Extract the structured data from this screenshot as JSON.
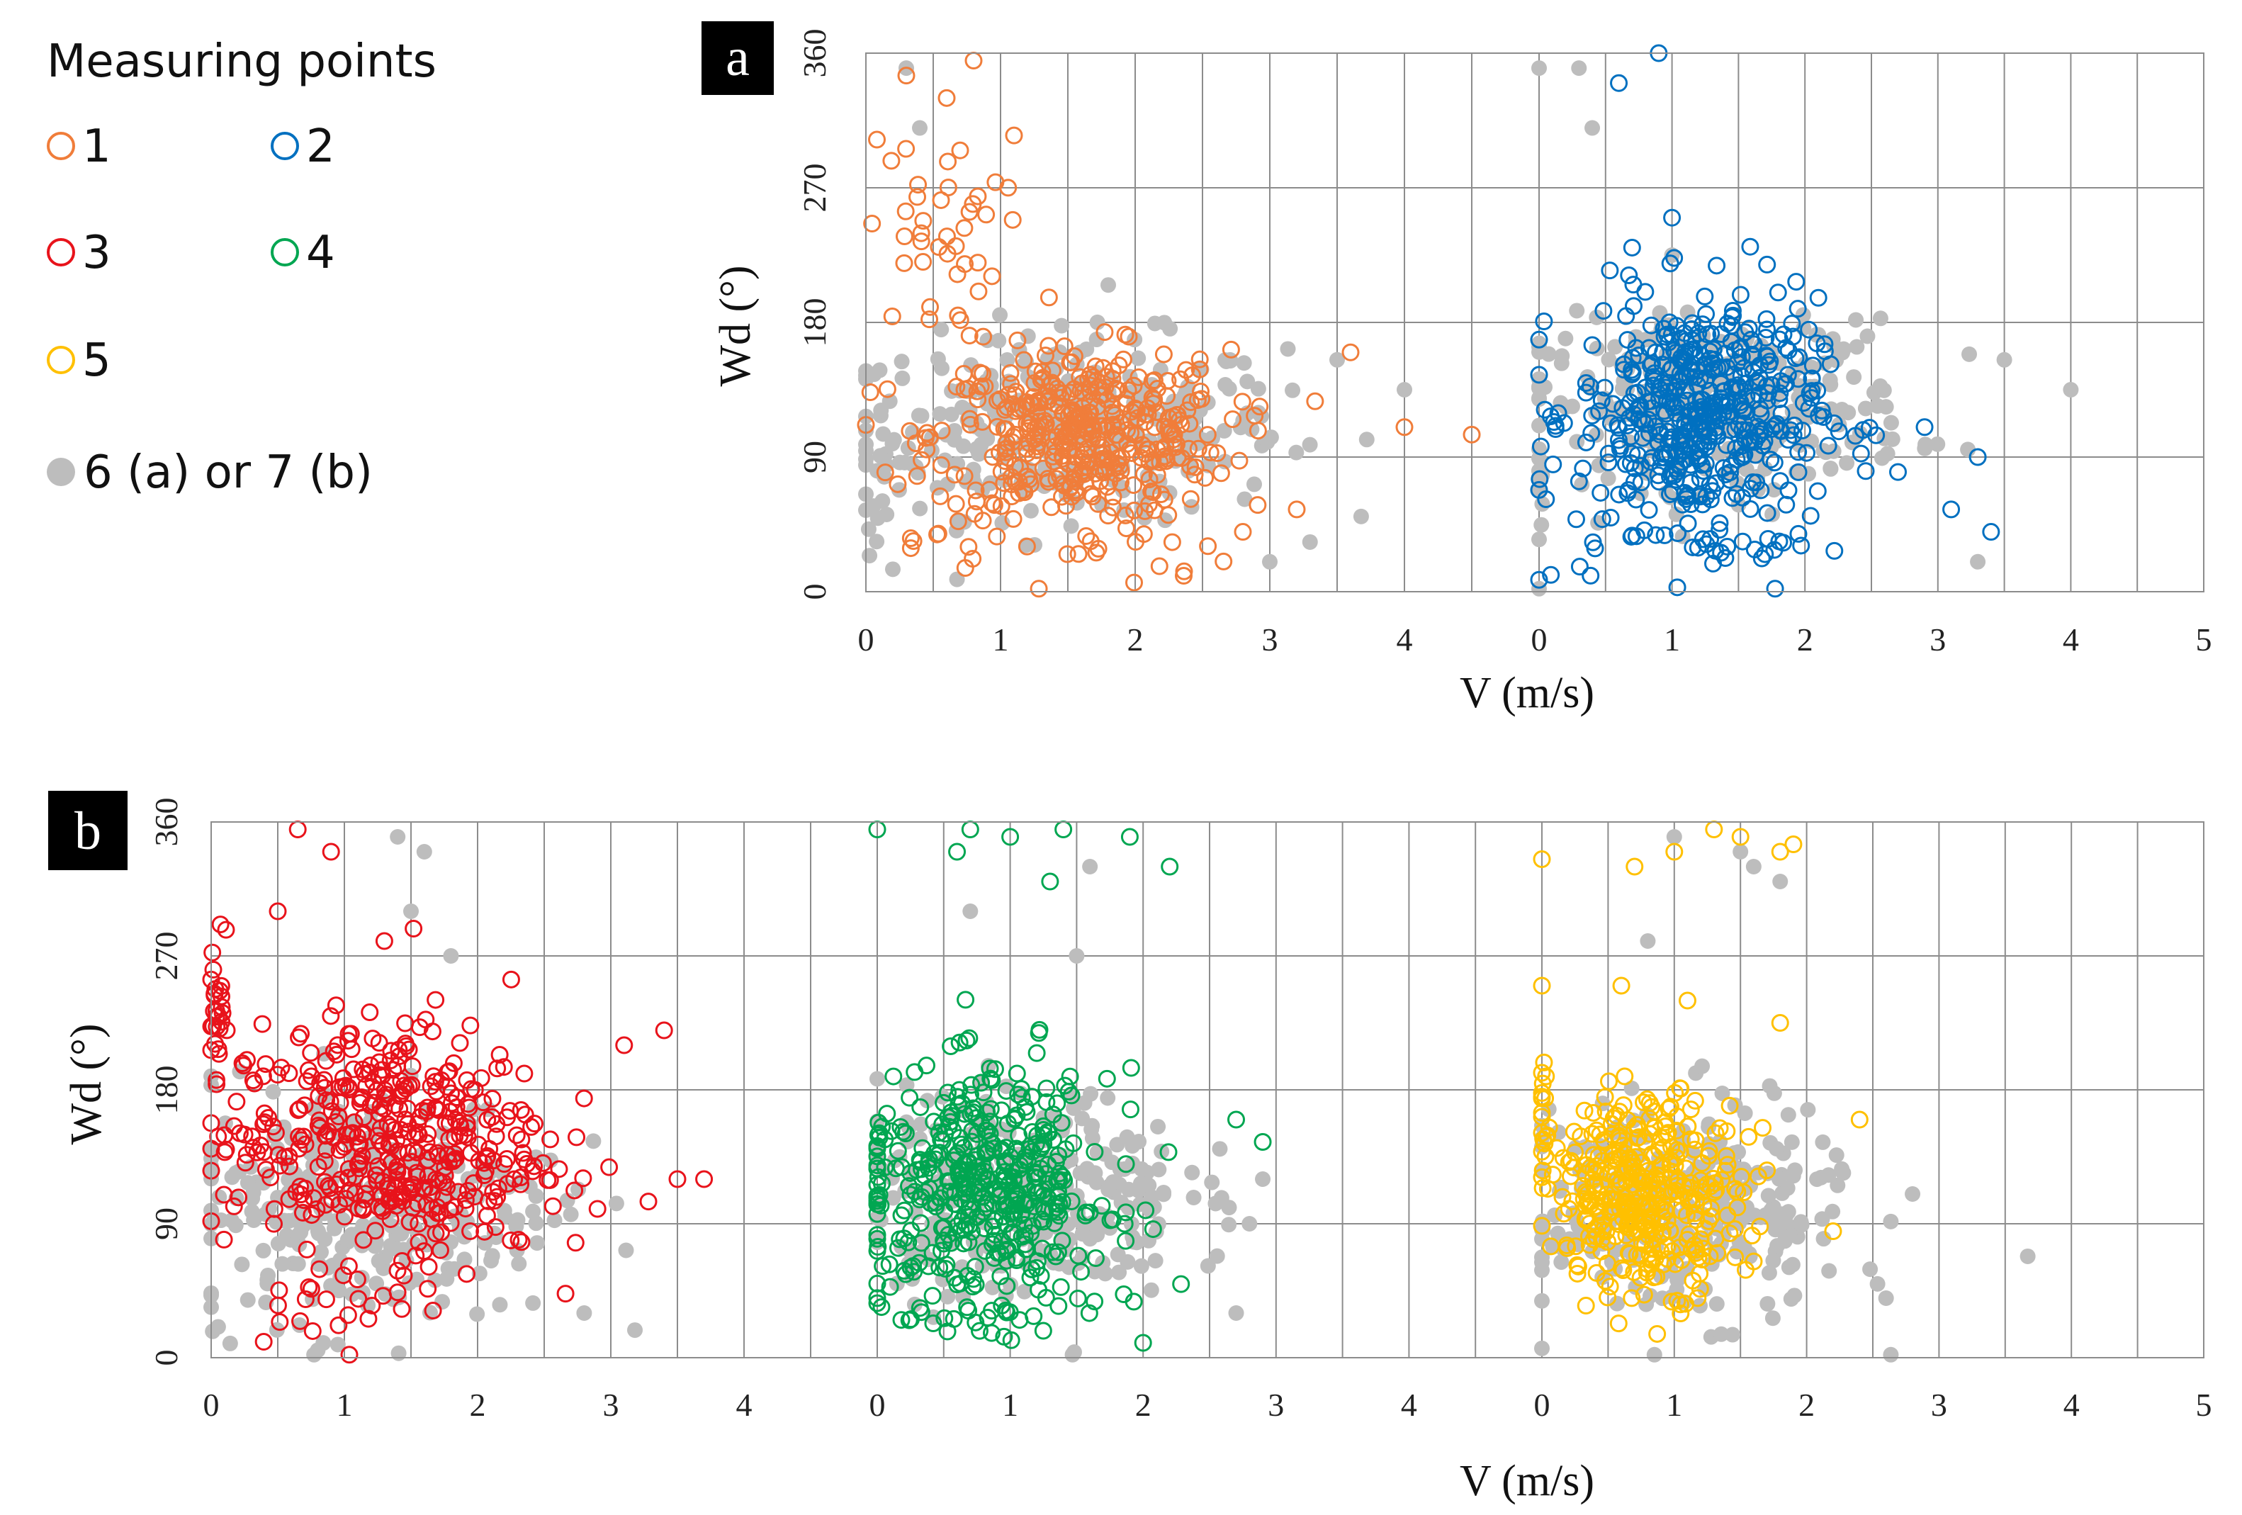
{
  "legend": {
    "title": "Measuring points",
    "items": [
      {
        "label": "1",
        "color": "#f07d3a",
        "marker": "open-circle"
      },
      {
        "label": "2",
        "color": "#0070c0",
        "marker": "open-circle"
      },
      {
        "label": "3",
        "color": "#e8131b",
        "marker": "open-circle"
      },
      {
        "label": "4",
        "color": "#00a651",
        "marker": "open-circle"
      },
      {
        "label": "5",
        "color": "#ffc000",
        "marker": "open-circle"
      },
      {
        "label": "6 (a) or 7 (b)",
        "color": "#bdbdbd",
        "marker": "filled-circle"
      }
    ]
  },
  "chart_data": [
    {
      "type": "scatter",
      "panel_label": "a",
      "ylabel": "Wd (°)",
      "xlabel": "V (m/s)",
      "ylim": [
        0,
        360
      ],
      "yticks": [
        "0",
        "90",
        "180",
        "270",
        "360"
      ],
      "grid": true,
      "subplots": [
        {
          "xlim": [
            0,
            5
          ],
          "xticks": [
            "0",
            "1",
            "2",
            "3",
            "4"
          ],
          "series": [
            {
              "name": "1",
              "color": "#f07d3a",
              "marker": "open-circle",
              "clusters": [
                {
                  "cx": 1.6,
                  "cy": 105,
                  "sx": 0.55,
                  "sy": 28,
                  "n": 420
                },
                {
                  "cx": 0.5,
                  "cy": 235,
                  "sx": 0.25,
                  "sy": 35,
                  "n": 40
                },
                {
                  "cx": 1.5,
                  "cy": 30,
                  "sx": 0.6,
                  "sy": 15,
                  "n": 25
                }
              ],
              "points": [
                [
                  0.3,
                  345
                ],
                [
                  0.6,
                  330
                ],
                [
                  0.8,
                  355
                ],
                [
                  1.1,
                  305
                ],
                [
                  3.6,
                  160
                ],
                [
                  4.5,
                  105
                ],
                [
                  4.0,
                  110
                ],
                [
                  3.2,
                  55
                ],
                [
                  2.8,
                  40
                ],
                [
                  0.7,
                  295
                ]
              ]
            },
            {
              "name": "6 (a) or 7 (b)",
              "color": "#bdbdbd",
              "marker": "filled-circle",
              "clusters": [
                {
                  "cx": 1.5,
                  "cy": 110,
                  "sx": 0.8,
                  "sy": 30,
                  "n": 330
                },
                {
                  "cx": 0.1,
                  "cy": 60,
                  "sx": 0.05,
                  "sy": 30,
                  "n": 12
                }
              ],
              "points": [
                [
                  0.3,
                  350
                ],
                [
                  0.4,
                  310
                ],
                [
                  1.8,
                  205
                ],
                [
                  3.5,
                  155
                ],
                [
                  4.0,
                  135
                ],
                [
                  3.0,
                  20
                ],
                [
                  0.2,
                  15
                ]
              ]
            }
          ]
        },
        {
          "xlim": [
            0,
            5
          ],
          "xticks": [
            "0",
            "1",
            "2",
            "3",
            "4",
            "5"
          ],
          "series": [
            {
              "name": "2",
              "color": "#0070c0",
              "marker": "open-circle",
              "clusters": [
                {
                  "cx": 1.2,
                  "cy": 120,
                  "sx": 0.45,
                  "sy": 38,
                  "n": 480
                },
                {
                  "cx": 1.1,
                  "cy": 35,
                  "sx": 0.5,
                  "sy": 18,
                  "n": 35
                }
              ],
              "points": [
                [
                  0.6,
                  340
                ],
                [
                  0.9,
                  360
                ],
                [
                  1.0,
                  250
                ],
                [
                  0.7,
                  230
                ],
                [
                  3.3,
                  90
                ],
                [
                  3.4,
                  40
                ],
                [
                  3.1,
                  55
                ],
                [
                  2.7,
                  80
                ],
                [
                  0.0,
                  145
                ],
                [
                  2.9,
                  110
                ]
              ]
            },
            {
              "name": "6 (a) or 7 (b)",
              "color": "#bdbdbd",
              "marker": "filled-circle",
              "clusters": [
                {
                  "cx": 1.4,
                  "cy": 125,
                  "sx": 0.7,
                  "sy": 28,
                  "n": 300
                },
                {
                  "cx": 0.0,
                  "cy": 70,
                  "sx": 0.03,
                  "sy": 30,
                  "n": 10
                }
              ],
              "points": [
                [
                  0.0,
                  350
                ],
                [
                  0.3,
                  350
                ],
                [
                  0.4,
                  310
                ],
                [
                  1.0,
                  225
                ],
                [
                  3.5,
                  155
                ],
                [
                  4.0,
                  135
                ],
                [
                  3.3,
                  20
                ]
              ]
            }
          ]
        }
      ]
    },
    {
      "type": "scatter",
      "panel_label": "b",
      "ylabel": "Wd (°)",
      "xlabel": "V (m/s)",
      "ylim": [
        0,
        360
      ],
      "yticks": [
        "0",
        "90",
        "180",
        "270",
        "360"
      ],
      "grid": true,
      "subplots": [
        {
          "xlim": [
            0,
            5
          ],
          "xticks": [
            "0",
            "1",
            "2",
            "3",
            "4"
          ],
          "series": [
            {
              "name": "3",
              "color": "#e8131b",
              "marker": "open-circle",
              "clusters": [
                {
                  "cx": 1.3,
                  "cy": 145,
                  "sx": 0.6,
                  "sy": 40,
                  "n": 440
                },
                {
                  "cx": 0.05,
                  "cy": 235,
                  "sx": 0.03,
                  "sy": 25,
                  "n": 25
                },
                {
                  "cx": 1.0,
                  "cy": 40,
                  "sx": 0.4,
                  "sy": 15,
                  "n": 20
                }
              ],
              "points": [
                [
                  0.65,
                  355
                ],
                [
                  0.9,
                  340
                ],
                [
                  0.5,
                  300
                ],
                [
                  1.3,
                  280
                ],
                [
                  3.7,
                  120
                ],
                [
                  3.5,
                  120
                ],
                [
                  3.1,
                  210
                ],
                [
                  3.4,
                  220
                ],
                [
                  2.9,
                  100
                ]
              ]
            },
            {
              "name": "6 (a) or 7 (b)",
              "color": "#bdbdbd",
              "marker": "filled-circle",
              "clusters": [
                {
                  "cx": 1.2,
                  "cy": 105,
                  "sx": 0.7,
                  "sy": 40,
                  "n": 320
                }
              ],
              "points": [
                [
                  1.4,
                  350
                ],
                [
                  1.6,
                  340
                ],
                [
                  1.5,
                  300
                ],
                [
                  1.8,
                  270
                ],
                [
                  0.8,
                  5
                ],
                [
                  2.8,
                  30
                ]
              ]
            }
          ]
        },
        {
          "xlim": [
            0,
            5
          ],
          "xticks": [
            "0",
            "1",
            "2",
            "3",
            "4"
          ],
          "series": [
            {
              "name": "4",
              "color": "#00a651",
              "marker": "open-circle",
              "clusters": [
                {
                  "cx": 0.85,
                  "cy": 115,
                  "sx": 0.45,
                  "sy": 38,
                  "n": 420
                },
                {
                  "cx": 0.0,
                  "cy": 120,
                  "sx": 0.02,
                  "sy": 25,
                  "n": 18
                },
                {
                  "cx": 0.8,
                  "cy": 30,
                  "sx": 0.5,
                  "sy": 15,
                  "n": 25
                }
              ],
              "points": [
                [
                  0.0,
                  355
                ],
                [
                  0.6,
                  340
                ],
                [
                  0.7,
                  355
                ],
                [
                  1.0,
                  350
                ],
                [
                  1.4,
                  355
                ],
                [
                  1.3,
                  320
                ],
                [
                  2.2,
                  330
                ],
                [
                  1.9,
                  350
                ],
                [
                  2.9,
                  145
                ],
                [
                  2.7,
                  160
                ],
                [
                  2.0,
                  10
                ]
              ]
            },
            {
              "name": "6 (a) or 7 (b)",
              "color": "#bdbdbd",
              "marker": "filled-circle",
              "clusters": [
                {
                  "cx": 1.1,
                  "cy": 110,
                  "sx": 0.6,
                  "sy": 35,
                  "n": 310
                }
              ],
              "points": [
                [
                  0.7,
                  300
                ],
                [
                  1.6,
                  330
                ],
                [
                  1.5,
                  270
                ],
                [
                  2.9,
                  120
                ],
                [
                  2.8,
                  90
                ],
                [
                  2.7,
                  30
                ]
              ]
            }
          ]
        },
        {
          "xlim": [
            0,
            5
          ],
          "xticks": [
            "0",
            "1",
            "2",
            "3",
            "4",
            "5"
          ],
          "series": [
            {
              "name": "5",
              "color": "#ffc000",
              "marker": "open-circle",
              "clusters": [
                {
                  "cx": 0.8,
                  "cy": 110,
                  "sx": 0.35,
                  "sy": 32,
                  "n": 380
                },
                {
                  "cx": 0.0,
                  "cy": 150,
                  "sx": 0.02,
                  "sy": 25,
                  "n": 18
                }
              ],
              "points": [
                [
                  0.0,
                  335
                ],
                [
                  0.7,
                  330
                ],
                [
                  1.0,
                  340
                ],
                [
                  1.3,
                  355
                ],
                [
                  1.5,
                  350
                ],
                [
                  1.8,
                  340
                ],
                [
                  1.9,
                  345
                ],
                [
                  0.0,
                  250
                ],
                [
                  0.6,
                  250
                ],
                [
                  1.1,
                  240
                ],
                [
                  1.8,
                  225
                ],
                [
                  2.2,
                  85
                ],
                [
                  2.4,
                  160
                ]
              ]
            },
            {
              "name": "6 (a) or 7 (b)",
              "color": "#bdbdbd",
              "marker": "filled-circle",
              "clusters": [
                {
                  "cx": 1.1,
                  "cy": 100,
                  "sx": 0.6,
                  "sy": 35,
                  "n": 300
                }
              ],
              "points": [
                [
                  1.0,
                  350
                ],
                [
                  1.5,
                  340
                ],
                [
                  1.6,
                  330
                ],
                [
                  1.8,
                  320
                ],
                [
                  0.8,
                  280
                ],
                [
                  2.8,
                  110
                ],
                [
                  2.6,
                  40
                ]
              ]
            }
          ]
        }
      ]
    }
  ]
}
